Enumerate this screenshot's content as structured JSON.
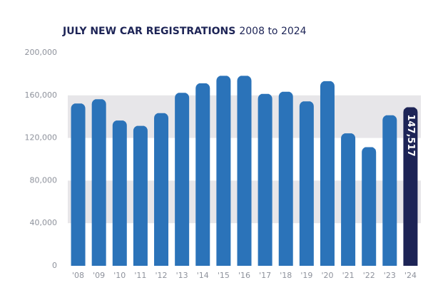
{
  "chart_data": {
    "type": "bar",
    "title": "JULY NEW CAR REGISTRATIONS",
    "subtitle": "2008 to 2024",
    "categories": [
      "'08",
      "'09",
      "'10",
      "'11",
      "'12",
      "'13",
      "'14",
      "'15",
      "'16",
      "'17",
      "'18",
      "'19",
      "'20",
      "'21",
      "'22",
      "'23",
      "'24"
    ],
    "values": [
      151000,
      155000,
      135000,
      130000,
      142000,
      161000,
      170000,
      177000,
      177000,
      160000,
      162000,
      153000,
      172000,
      123000,
      110000,
      140000,
      147517
    ],
    "value_labels": [
      null,
      null,
      null,
      null,
      null,
      null,
      null,
      null,
      null,
      null,
      null,
      null,
      null,
      null,
      null,
      null,
      "147,517"
    ],
    "colors": [
      "#2b73b9",
      "#2b73b9",
      "#2b73b9",
      "#2b73b9",
      "#2b73b9",
      "#2b73b9",
      "#2b73b9",
      "#2b73b9",
      "#2b73b9",
      "#2b73b9",
      "#2b73b9",
      "#2b73b9",
      "#2b73b9",
      "#2b73b9",
      "#2b73b9",
      "#2b73b9",
      "#1d2456"
    ],
    "ylim": [
      0,
      200000
    ],
    "yticks": [
      0,
      {
        "value": 40000,
        "label": "40,000"
      },
      {
        "value": 80000,
        "label": "80,000"
      },
      {
        "value": 120000,
        "label": "120,000"
      },
      {
        "value": 160000,
        "label": "160,000"
      },
      {
        "value": 200000,
        "label": "200,000"
      }
    ],
    "banded_background": true
  }
}
